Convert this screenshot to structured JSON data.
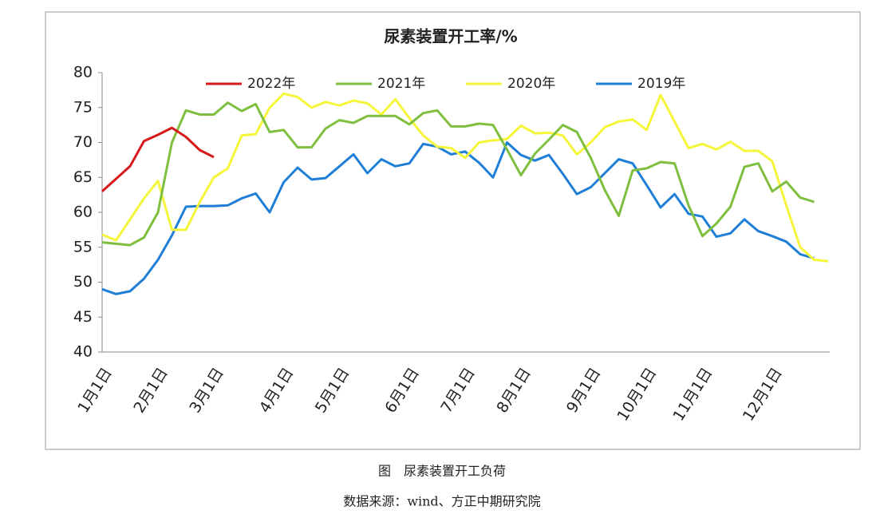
{
  "chart_data": {
    "type": "line",
    "title": "尿素装置开工率/%",
    "caption": "图　尿素装置开工负荷",
    "source": "数据来源：wind、方正中期研究院",
    "categories": [
      "1月1日",
      null,
      null,
      null,
      "2月1日",
      null,
      null,
      null,
      "3月1日",
      null,
      null,
      null,
      null,
      "4月1日",
      null,
      null,
      null,
      "5月1日",
      null,
      null,
      null,
      null,
      "6月1日",
      null,
      null,
      null,
      "7月1日",
      null,
      null,
      null,
      "8月1日",
      null,
      null,
      null,
      null,
      "9月1日",
      null,
      null,
      null,
      "10月1日",
      null,
      null,
      null,
      "11月1日",
      null,
      null,
      null,
      null,
      "12月1日",
      null,
      null,
      null,
      null
    ],
    "series": [
      {
        "name": "2022年",
        "color": "#d7191c",
        "values": [
          63,
          64.8,
          66.6,
          70.2,
          71.1,
          72.1,
          70.8,
          68.9,
          67.9,
          null,
          null,
          null,
          null,
          null,
          null,
          null,
          null,
          null,
          null,
          null,
          null,
          null,
          null,
          null,
          null,
          null,
          null,
          null,
          null,
          null,
          null,
          null,
          null,
          null,
          null,
          null,
          null,
          null,
          null,
          null,
          null,
          null,
          null,
          null,
          null,
          null,
          null,
          null,
          null,
          null,
          null,
          null,
          null
        ]
      },
      {
        "name": "2021年",
        "color": "#7fbf3f",
        "values": [
          55.7,
          55.5,
          55.3,
          56.4,
          60,
          70,
          74.6,
          74,
          74,
          75.7,
          74.5,
          75.5,
          71.5,
          71.8,
          69.3,
          69.3,
          72,
          73.2,
          72.8,
          73.8,
          73.8,
          73.8,
          72.6,
          74.2,
          74.6,
          72.3,
          72.3,
          72.7,
          72.5,
          69,
          65.3,
          68.4,
          70.4,
          72.5,
          71.5,
          67.8,
          63.2,
          59.5,
          66,
          66.3,
          67.2,
          67,
          61,
          56.6,
          58.4,
          60.8,
          66.5,
          67,
          63,
          64.4,
          62.1,
          61.5,
          null
        ]
      },
      {
        "name": "2020年",
        "color": "#f5f53a",
        "values": [
          56.8,
          56,
          59,
          62,
          64.5,
          57.5,
          57.5,
          61.5,
          65,
          66.3,
          71,
          71.2,
          75,
          77,
          76.5,
          75,
          75.8,
          75.3,
          76,
          75.6,
          74,
          76.2,
          73.5,
          71,
          69.4,
          69.2,
          67.8,
          70,
          70.3,
          70.5,
          72.4,
          71.3,
          71.4,
          71,
          68.3,
          70,
          72.2,
          73,
          73.3,
          71.8,
          76.8,
          73,
          69.2,
          69.8,
          69,
          70.1,
          68.8,
          68.8,
          67.3,
          61,
          55,
          53.2,
          53
        ]
      },
      {
        "name": "2019年",
        "color": "#1f7fd6",
        "values": [
          49,
          48.3,
          48.7,
          50.5,
          53.2,
          56.7,
          60.8,
          60.9,
          60.9,
          61,
          62,
          62.7,
          60,
          64.3,
          66.4,
          64.7,
          64.9,
          66.6,
          68.3,
          65.6,
          67.6,
          66.6,
          67,
          69.8,
          69.4,
          68.3,
          68.7,
          67.1,
          65,
          70,
          68.2,
          67.4,
          68.2,
          65.5,
          62.6,
          63.6,
          65.6,
          67.6,
          67,
          63.9,
          60.7,
          62.6,
          59.8,
          59.4,
          56.5,
          57,
          59,
          57.3,
          56.6,
          55.8,
          54,
          53.4,
          null
        ]
      }
    ],
    "ylim": [
      40,
      80
    ],
    "yticks": [
      40,
      45,
      50,
      55,
      60,
      65,
      70,
      75,
      80
    ],
    "grid": false,
    "legend": "top"
  }
}
